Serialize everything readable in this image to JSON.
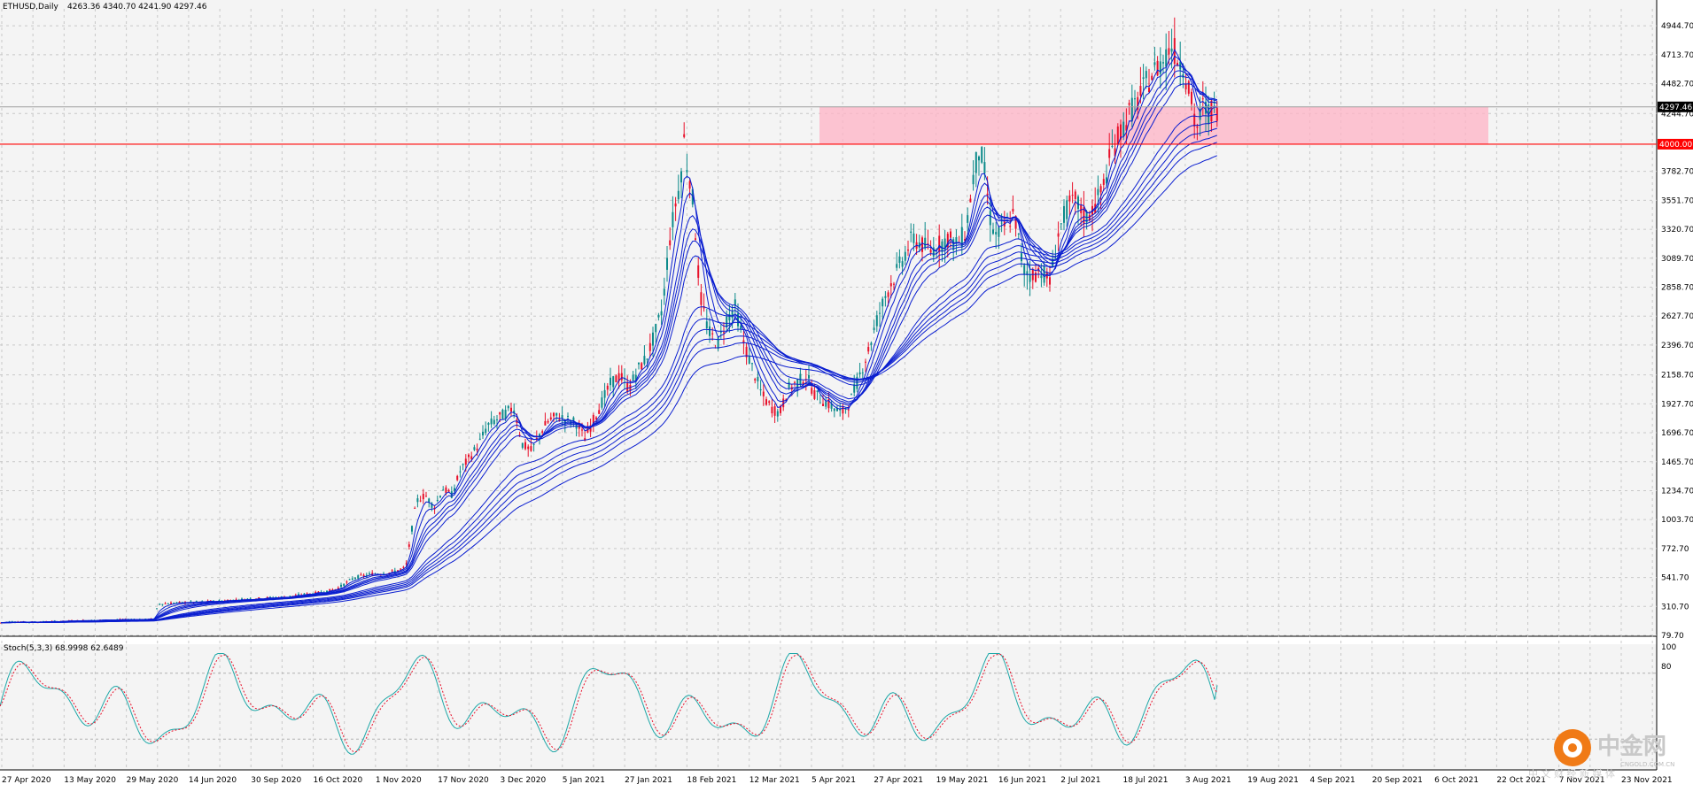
{
  "header": {
    "symbol_tf": "ETHUSD,Daily",
    "ohlc": "4263.36 4340.70 4241.90 4297.46"
  },
  "indicator": {
    "label": "Stoch(5,3,3) 68.9998 62.6489",
    "levels": [
      "100",
      "80"
    ]
  },
  "watermark": {
    "brand_cn": "中金网",
    "brand_en": "CNGOLD.COM.CN",
    "tagline": "中 文 财 经 新 媒 体"
  },
  "colors": {
    "background": "#f4f4f4",
    "grid": "#c8c8c8",
    "bull": "#e8102a",
    "bear": "#0c8a8a",
    "ma": "#0a1ed0",
    "zone": "#ffb3c6",
    "level": "#ff0000",
    "stoch_main": "#1fa8a8",
    "stoch_signal": "#e8102a"
  },
  "chart_data": {
    "type": "candlestick",
    "title": "ETHUSD,Daily",
    "ylim": [
      79.7,
      5080
    ],
    "y_ticks": [
      "4944.70",
      "4713.70",
      "4482.70",
      "4244.70",
      "3782.70",
      "3551.70",
      "3320.70",
      "3089.70",
      "2858.70",
      "2627.70",
      "2396.70",
      "2158.70",
      "1927.70",
      "1696.70",
      "1465.70",
      "1234.70",
      "1003.70",
      "772.70",
      "541.70",
      "310.70",
      "79.70"
    ],
    "x_ticks": [
      "27 Apr 2020",
      "13 May 2020",
      "29 May 2020",
      "14 Jun 2020",
      "30 Sep 2020",
      "16 Oct 2020",
      "1 Nov 2020",
      "17 Nov 2020",
      "3 Dec 2020",
      "5 Jan 2021",
      "27 Jan 2021",
      "18 Feb 2021",
      "12 Mar 2021",
      "5 Apr 2021",
      "27 Apr 2021",
      "19 May 2021",
      "16 Jun 2021",
      "2 Jul 2021",
      "18 Jul 2021",
      "3 Aug 2021",
      "19 Aug 2021",
      "4 Sep 2021",
      "20 Sep 2021",
      "6 Oct 2021",
      "22 Oct 2021",
      "7 Nov 2021",
      "23 Nov 2021"
    ],
    "current_price": "4297.46",
    "level_line": "4000.00",
    "resistance_zone": [
      4000,
      4300
    ],
    "close_path": [
      [
        0,
        180
      ],
      [
        12,
        190
      ],
      [
        30,
        185
      ],
      [
        60,
        190
      ],
      [
        100,
        200
      ],
      [
        140,
        205
      ],
      [
        175,
        210
      ],
      [
        178,
        330
      ],
      [
        200,
        340
      ],
      [
        240,
        350
      ],
      [
        280,
        370
      ],
      [
        320,
        385
      ],
      [
        360,
        420
      ],
      [
        380,
        450
      ],
      [
        400,
        540
      ],
      [
        420,
        570
      ],
      [
        440,
        580
      ],
      [
        458,
        620
      ],
      [
        462,
        800
      ],
      [
        470,
        1150
      ],
      [
        480,
        1200
      ],
      [
        490,
        1100
      ],
      [
        500,
        1250
      ],
      [
        510,
        1200
      ],
      [
        520,
        1400
      ],
      [
        530,
        1500
      ],
      [
        540,
        1600
      ],
      [
        550,
        1750
      ],
      [
        560,
        1800
      ],
      [
        570,
        1850
      ],
      [
        580,
        1900
      ],
      [
        590,
        1600
      ],
      [
        600,
        1550
      ],
      [
        610,
        1700
      ],
      [
        620,
        1800
      ],
      [
        630,
        1830
      ],
      [
        640,
        1800
      ],
      [
        650,
        1780
      ],
      [
        660,
        1650
      ],
      [
        670,
        1800
      ],
      [
        680,
        1950
      ],
      [
        690,
        2100
      ],
      [
        700,
        2150
      ],
      [
        710,
        2050
      ],
      [
        720,
        2200
      ],
      [
        730,
        2300
      ],
      [
        740,
        2500
      ],
      [
        748,
        2700
      ],
      [
        755,
        3200
      ],
      [
        762,
        3500
      ],
      [
        768,
        3700
      ],
      [
        772,
        4050
      ],
      [
        776,
        3800
      ],
      [
        780,
        3700
      ],
      [
        785,
        3300
      ],
      [
        790,
        2800
      ],
      [
        800,
        2500
      ],
      [
        810,
        2400
      ],
      [
        820,
        2600
      ],
      [
        830,
        2700
      ],
      [
        840,
        2400
      ],
      [
        850,
        2200
      ],
      [
        860,
        2000
      ],
      [
        870,
        1900
      ],
      [
        880,
        1850
      ],
      [
        890,
        2050
      ],
      [
        900,
        2100
      ],
      [
        910,
        2150
      ],
      [
        920,
        2000
      ],
      [
        930,
        1950
      ],
      [
        940,
        1900
      ],
      [
        950,
        1850
      ],
      [
        960,
        1950
      ],
      [
        970,
        2150
      ],
      [
        980,
        2350
      ],
      [
        990,
        2600
      ],
      [
        1000,
        2800
      ],
      [
        1010,
        2950
      ],
      [
        1020,
        3100
      ],
      [
        1030,
        3250
      ],
      [
        1040,
        3200
      ],
      [
        1050,
        3150
      ],
      [
        1060,
        3200
      ],
      [
        1070,
        3250
      ],
      [
        1080,
        3200
      ],
      [
        1090,
        3300
      ],
      [
        1095,
        3550
      ],
      [
        1100,
        3800
      ],
      [
        1105,
        3950
      ],
      [
        1110,
        3850
      ],
      [
        1118,
        3400
      ],
      [
        1125,
        3250
      ],
      [
        1135,
        3350
      ],
      [
        1145,
        3450
      ],
      [
        1155,
        3000
      ],
      [
        1165,
        2950
      ],
      [
        1175,
        3000
      ],
      [
        1185,
        2900
      ],
      [
        1195,
        3300
      ],
      [
        1205,
        3500
      ],
      [
        1215,
        3550
      ],
      [
        1225,
        3400
      ],
      [
        1235,
        3500
      ],
      [
        1245,
        3650
      ],
      [
        1255,
        3950
      ],
      [
        1265,
        4100
      ],
      [
        1275,
        4250
      ],
      [
        1285,
        4350
      ],
      [
        1295,
        4500
      ],
      [
        1305,
        4600
      ],
      [
        1315,
        4700
      ],
      [
        1322,
        4800
      ],
      [
        1328,
        4700
      ],
      [
        1335,
        4650
      ],
      [
        1342,
        4450
      ],
      [
        1350,
        4100
      ],
      [
        1358,
        4300
      ],
      [
        1366,
        4250
      ],
      [
        1375,
        4297
      ]
    ],
    "ema_periods": [
      3,
      5,
      8,
      10,
      12,
      15,
      30,
      35,
      40,
      45,
      50,
      60
    ],
    "stochastic": {
      "k": 68.9998,
      "d": 62.6489,
      "period": "5,3,3"
    }
  }
}
